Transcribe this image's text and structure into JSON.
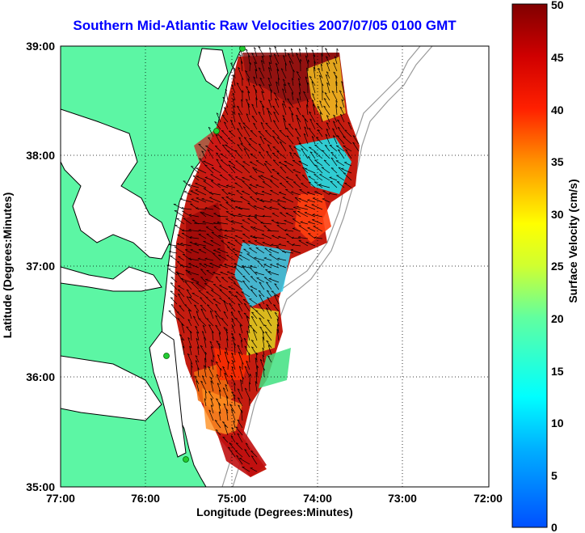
{
  "title": "Southern Mid-Atlantic Raw Velocities 2007/07/05 0100 GMT",
  "map": {
    "xlabel": "Longitude (Degrees:Minutes)",
    "ylabel": "Latitude (Degrees:Minutes)",
    "lon_range": [
      -77,
      -72
    ],
    "lat_range": [
      35,
      39
    ],
    "x_ticks": [
      "77:00",
      "76:00",
      "75:00",
      "74:00",
      "73:00",
      "72:00"
    ],
    "y_ticks": [
      "39:00",
      "38:00",
      "37:00",
      "36:00",
      "35:00"
    ],
    "grid": "dotted",
    "land_color": "#5cf6a4",
    "coast_color": "#000000",
    "bathymetry_color": "#9a9a9a",
    "site_marker_color": "#22cc33"
  },
  "colorbar": {
    "label": "Surface Velocity (cm/s)",
    "ticks": [
      "50",
      "45",
      "40",
      "35",
      "30",
      "25",
      "20",
      "15",
      "10",
      "5",
      "0"
    ],
    "range": [
      0,
      50
    ]
  }
}
